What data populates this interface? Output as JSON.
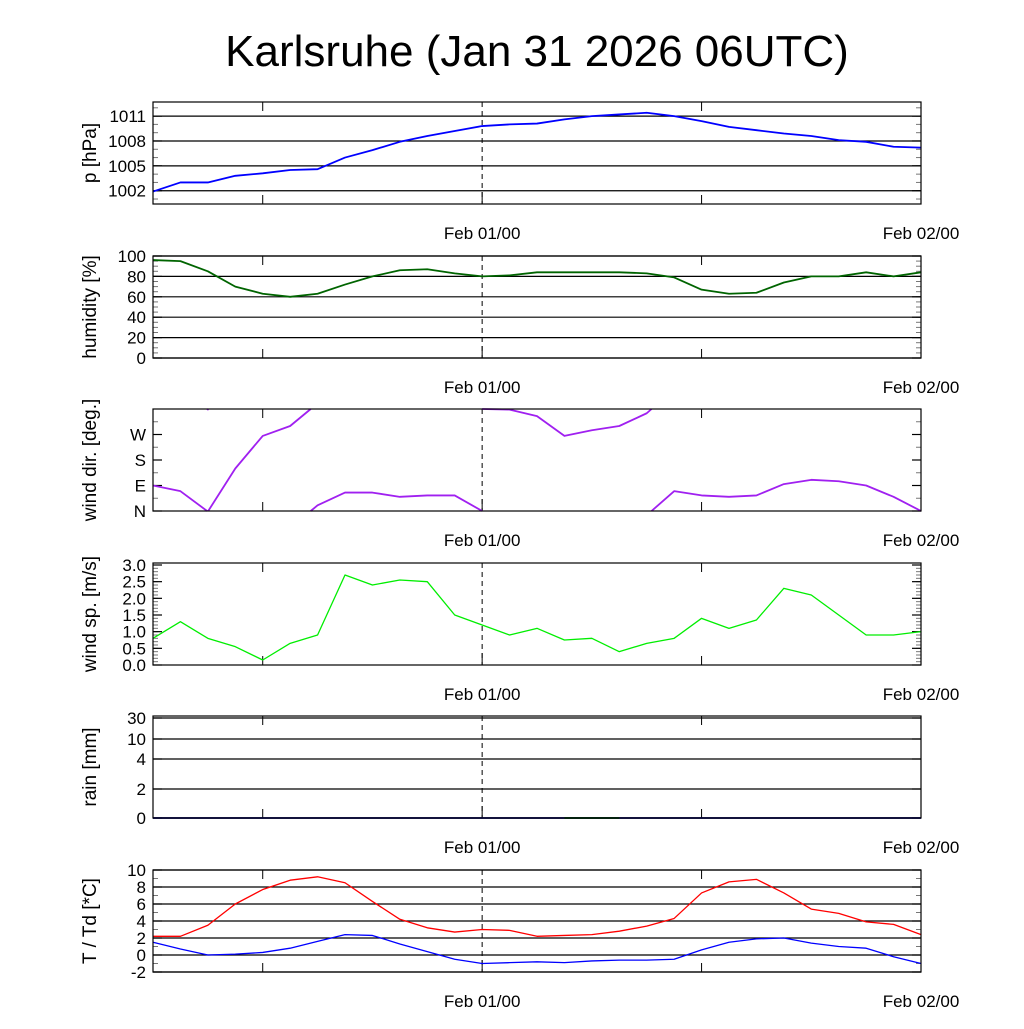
{
  "title": "Karlsruhe (Jan 31 2026 06UTC)",
  "chart_data": {
    "type": "line",
    "x_unit": "hours since Jan 31 06UTC",
    "x": [
      0,
      1.5,
      3,
      4.5,
      6,
      7.5,
      9,
      10.5,
      12,
      13.5,
      15,
      16.5,
      18,
      19.5,
      21,
      22.5,
      24,
      25.5,
      27,
      28.5,
      30,
      31.5,
      33,
      34.5,
      36,
      37.5,
      39,
      40.5,
      42
    ],
    "xlim": [
      0,
      42
    ],
    "x_major_ticks": [
      {
        "hour": 18,
        "label": "Feb 01/00"
      },
      {
        "hour": 42,
        "label": "Feb 02/00"
      }
    ],
    "x_minor_ticks": [
      6,
      30
    ],
    "dashed_marker_hour": 18,
    "panels": [
      {
        "id": "pressure",
        "ylabel": "p [hPa]",
        "ylim": [
          1000.4,
          1012.7
        ],
        "scale": "linear",
        "yticks": [
          {
            "value": 1002,
            "label": "1002"
          },
          {
            "value": 1005,
            "label": "1005"
          },
          {
            "value": 1008,
            "label": "1008"
          },
          {
            "value": 1011,
            "label": "1011"
          }
        ],
        "minor_step": 1,
        "grid": true,
        "series": [
          {
            "name": "pressure",
            "color": "#0000ff",
            "values": [
              1001.9,
              1003.0,
              1003.0,
              1003.8,
              1004.1,
              1004.5,
              1004.6,
              1006.0,
              1006.9,
              1007.9,
              1008.6,
              1009.2,
              1009.8,
              1010.0,
              1010.1,
              1010.6,
              1011.0,
              1011.2,
              1011.4,
              1011.0,
              1010.4,
              1009.7,
              1009.3,
              1008.9,
              1008.6,
              1008.1,
              1007.9,
              1007.3,
              1007.2
            ]
          }
        ]
      },
      {
        "id": "humidity",
        "ylabel": "humidity [%]",
        "ylim": [
          0,
          100
        ],
        "scale": "linear",
        "yticks": [
          {
            "value": 0,
            "label": "0"
          },
          {
            "value": 20,
            "label": "20"
          },
          {
            "value": 40,
            "label": "40"
          },
          {
            "value": 60,
            "label": "60"
          },
          {
            "value": 80,
            "label": "80"
          },
          {
            "value": 100,
            "label": "100"
          }
        ],
        "minor_step": 5,
        "grid": true,
        "series": [
          {
            "name": "humidity",
            "color": "#006400",
            "values": [
              96,
              95,
              85,
              70,
              63,
              60,
              63,
              72,
              80,
              86,
              87,
              83,
              80,
              81,
              84,
              84,
              84,
              84,
              83,
              79,
              67,
              63,
              64,
              74,
              80,
              80,
              84,
              80,
              84
            ]
          }
        ]
      },
      {
        "id": "wind_dir",
        "ylabel": "wind dir. [deg.]",
        "ylim": [
          0,
          360
        ],
        "scale": "circular",
        "yticks": [
          {
            "value": 0,
            "label": "N"
          },
          {
            "value": 90,
            "label": "E"
          },
          {
            "value": 180,
            "label": "S"
          },
          {
            "value": 270,
            "label": "W"
          }
        ],
        "minor_step": 45,
        "grid": false,
        "series": [
          {
            "name": "wind direction",
            "color": "#a020f0",
            "values": [
              90,
              70,
              358,
              150,
              265,
              300,
              20,
              65,
              65,
              50,
              55,
              55,
              0,
              358,
              335,
              265,
              285,
              300,
              345,
              70,
              55,
              50,
              55,
              95,
              110,
              105,
              90,
              50,
              0
            ]
          }
        ]
      },
      {
        "id": "wind_speed",
        "ylabel": "wind sp. [m/s]",
        "ylim": [
          0,
          3.06
        ],
        "scale": "linear",
        "yticks": [
          {
            "value": 0,
            "label": "0.0"
          },
          {
            "value": 0.5,
            "label": "0.5"
          },
          {
            "value": 1,
            "label": "1.0"
          },
          {
            "value": 1.5,
            "label": "1.5"
          },
          {
            "value": 2,
            "label": "2.0"
          },
          {
            "value": 2.5,
            "label": "2.5"
          },
          {
            "value": 3,
            "label": "3.0"
          }
        ],
        "minor_step": 0.1,
        "grid": false,
        "series": [
          {
            "name": "wind speed",
            "color": "#00ee00",
            "values": [
              0.8,
              1.3,
              0.8,
              0.55,
              0.15,
              0.65,
              0.9,
              2.7,
              2.4,
              2.55,
              2.5,
              1.5,
              1.2,
              0.9,
              1.1,
              0.75,
              0.8,
              0.4,
              0.65,
              0.8,
              1.4,
              1.1,
              1.35,
              2.3,
              2.1,
              1.5,
              0.9,
              0.9,
              1.0
            ]
          }
        ]
      },
      {
        "id": "rain",
        "ylabel": "rain [mm]",
        "ylim": [
          0,
          35
        ],
        "scale": "piecewise",
        "yticks": [
          {
            "value": 0,
            "label": "0"
          },
          {
            "value": 2,
            "label": "2"
          },
          {
            "value": 4,
            "label": "4"
          },
          {
            "value": 10,
            "label": "10"
          },
          {
            "value": 30,
            "label": "30"
          }
        ],
        "grid": true,
        "series": [
          {
            "name": "rain",
            "color": "#00008b",
            "values": [
              0,
              0,
              0,
              0,
              0,
              0,
              0,
              0,
              0,
              0,
              0,
              0,
              0,
              0,
              0,
              0,
              0,
              0,
              0,
              0,
              0,
              0,
              0,
              0,
              0,
              0,
              0,
              0,
              0
            ]
          },
          {
            "name": "rain (2)",
            "color": "#006400",
            "values": [
              null,
              null,
              null,
              null,
              null,
              null,
              null,
              null,
              null,
              null,
              null,
              null,
              null,
              null,
              null,
              0,
              0,
              0,
              null,
              null,
              null,
              null,
              null,
              null,
              null,
              null,
              null,
              null,
              null
            ]
          }
        ]
      },
      {
        "id": "temperature",
        "ylabel": "T / Td [*C]",
        "ylim": [
          -2,
          10
        ],
        "scale": "linear",
        "yticks": [
          {
            "value": -2,
            "label": "-2"
          },
          {
            "value": 0,
            "label": "0"
          },
          {
            "value": 2,
            "label": "2"
          },
          {
            "value": 4,
            "label": "4"
          },
          {
            "value": 6,
            "label": "6"
          },
          {
            "value": 8,
            "label": "8"
          },
          {
            "value": 10,
            "label": "10"
          }
        ],
        "minor_step": 1,
        "grid": true,
        "series": [
          {
            "name": "T",
            "color": "#ff0000",
            "values": [
              2.2,
              2.2,
              3.5,
              6.0,
              7.7,
              8.8,
              9.2,
              8.5,
              6.3,
              4.2,
              3.2,
              2.7,
              3.0,
              2.9,
              2.2,
              2.3,
              2.4,
              2.8,
              3.4,
              4.3,
              7.3,
              8.6,
              8.9,
              7.3,
              5.4,
              4.9,
              3.9,
              3.6,
              2.4
            ]
          },
          {
            "name": "Td",
            "color": "#0000ff",
            "values": [
              1.5,
              0.7,
              0.0,
              0.1,
              0.3,
              0.8,
              1.6,
              2.4,
              2.3,
              1.3,
              0.4,
              -0.5,
              -1.0,
              -0.9,
              -0.8,
              -0.9,
              -0.7,
              -0.6,
              -0.6,
              -0.5,
              0.6,
              1.5,
              1.9,
              2.0,
              1.4,
              1.0,
              0.8,
              -0.2,
              -1.0
            ]
          }
        ]
      }
    ]
  }
}
